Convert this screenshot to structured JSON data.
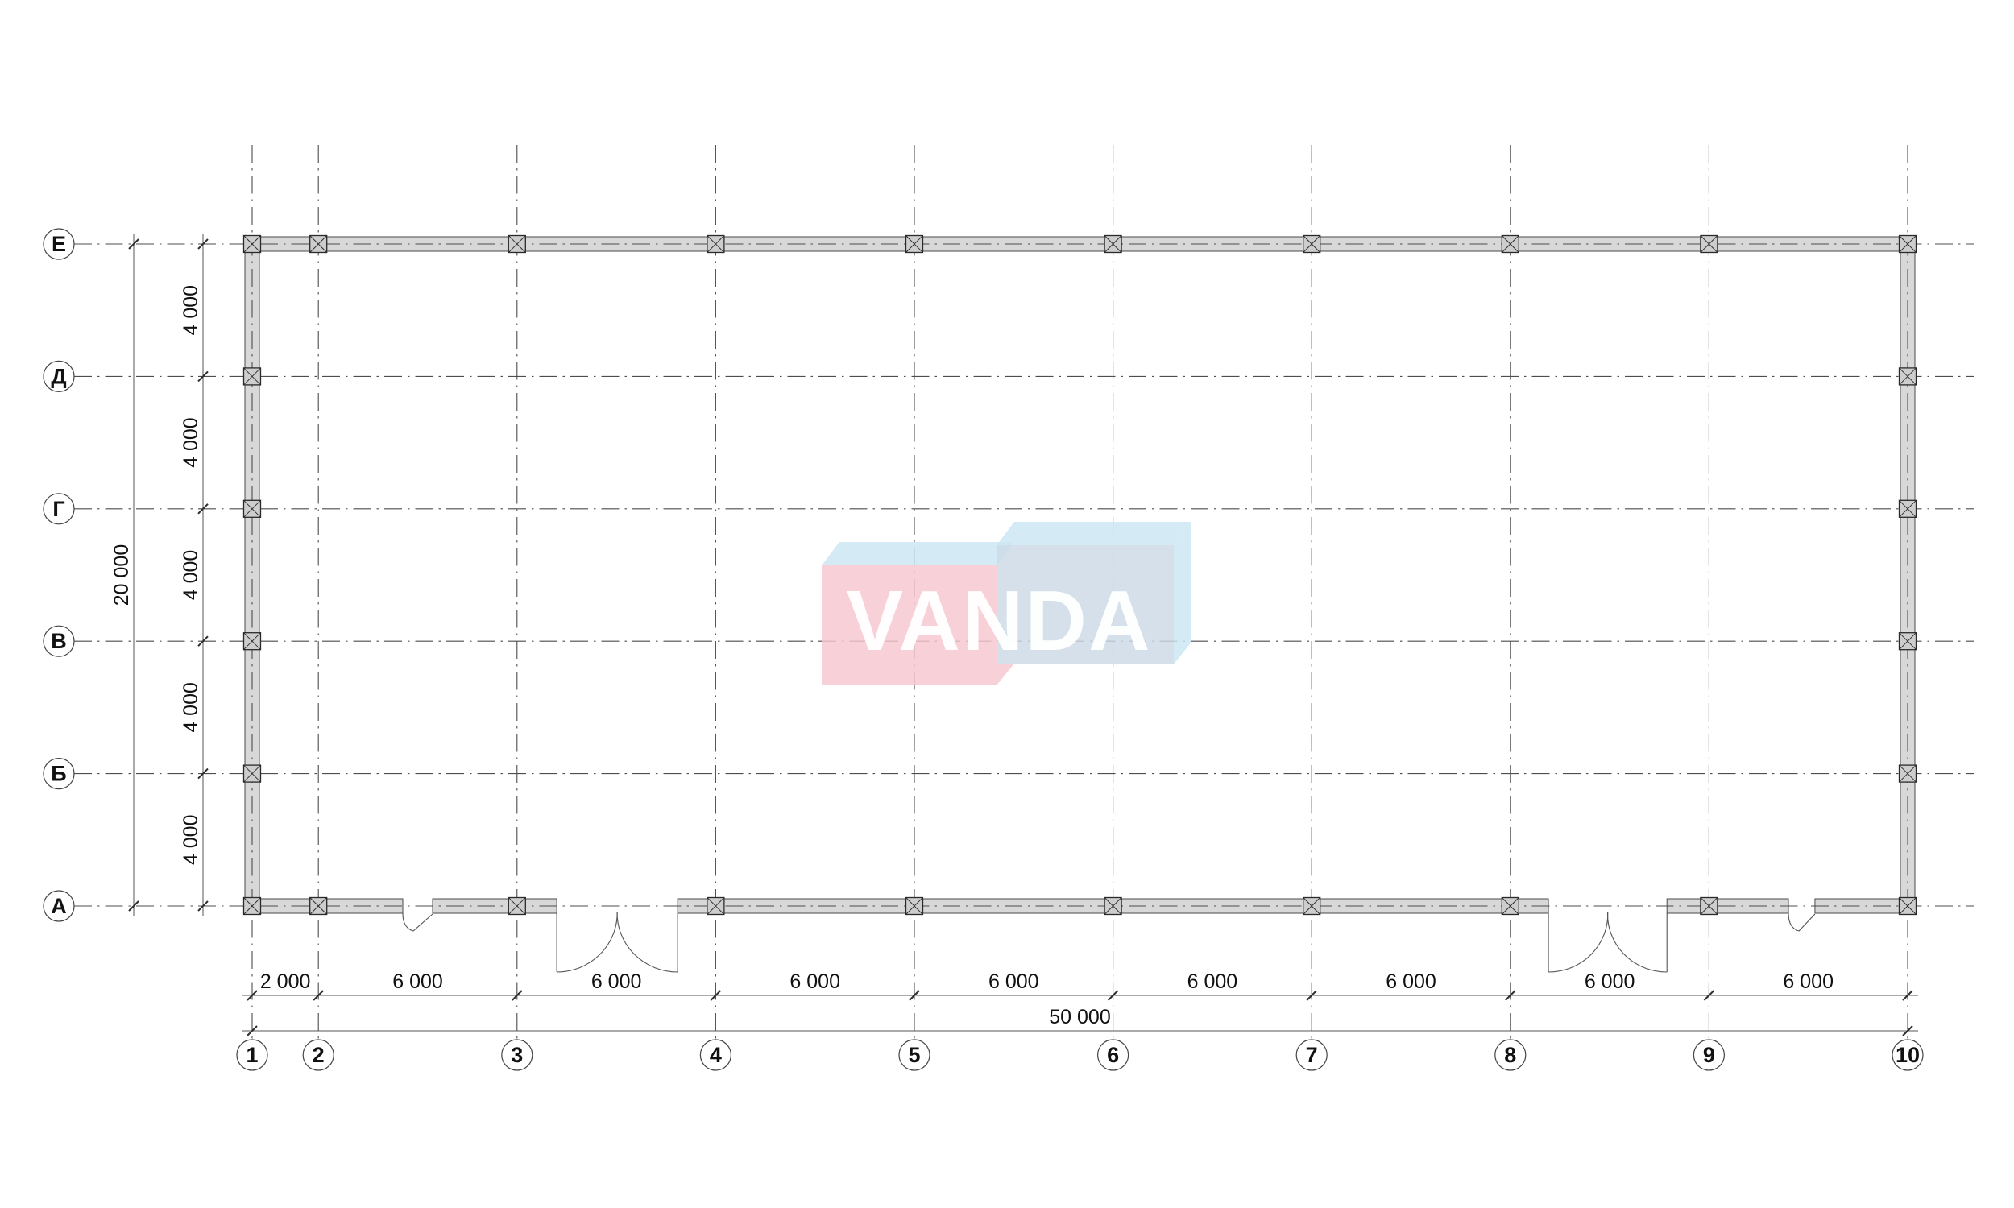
{
  "watermark": {
    "text": "VANDA",
    "colors": {
      "pink_front": "#f7c6d0",
      "top_face_blue": "#cbe7f3",
      "blue_front": "#ccd9e7",
      "text": "#ffffff"
    }
  },
  "drawing": {
    "axis_rows": [
      "Е",
      "Д",
      "Г",
      "В",
      "Б",
      "А"
    ],
    "axis_cols": [
      "1",
      "2",
      "3",
      "4",
      "5",
      "6",
      "7",
      "8",
      "9",
      "10"
    ],
    "row_offsets_mm": [
      0,
      4000,
      8000,
      12000,
      16000,
      20000
    ],
    "col_offsets_mm": [
      0,
      2000,
      8000,
      14000,
      20000,
      26000,
      32000,
      38000,
      44000,
      50000
    ],
    "col_spacing_labels": [
      "2 000",
      "6 000",
      "6 000",
      "6 000",
      "6 000",
      "6 000",
      "6 000",
      "6 000",
      "6 000"
    ],
    "col_total_label": "50 000",
    "row_spacing_labels": [
      "4 000",
      "4 000",
      "4 000",
      "4 000",
      "4 000"
    ],
    "row_total_label": "20 000",
    "doors": [
      {
        "type": "leaf",
        "from_mm": 4550,
        "to_mm": 5450
      },
      {
        "type": "double",
        "from_mm": 9200,
        "to_mm": 12850
      },
      {
        "type": "double",
        "from_mm": 39150,
        "to_mm": 42730
      },
      {
        "type": "leaf",
        "from_mm": 46400,
        "to_mm": 47200
      }
    ],
    "colors": {
      "wall_fill": "#d8d8d8",
      "wall_stroke": "#4a4a4a",
      "grid_line": "#4d4d4d",
      "column_fill": "#cdcdcd",
      "column_stroke": "#2a2a2a",
      "dim_line": "#555555",
      "tick": "#2e2e2e",
      "text": "#111111",
      "bubble_stroke": "#444444"
    }
  }
}
